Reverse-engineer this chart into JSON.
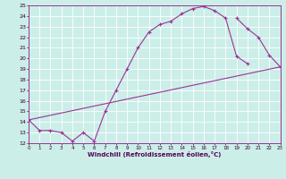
{
  "xlabel": "Windchill (Refroidissement éolien,°C)",
  "xlim": [
    0,
    23
  ],
  "ylim": [
    12,
    25
  ],
  "xticks": [
    0,
    1,
    2,
    3,
    4,
    5,
    6,
    7,
    8,
    9,
    10,
    11,
    12,
    13,
    14,
    15,
    16,
    17,
    18,
    19,
    20,
    21,
    22,
    23
  ],
  "yticks": [
    12,
    13,
    14,
    15,
    16,
    17,
    18,
    19,
    20,
    21,
    22,
    23,
    24,
    25
  ],
  "bg_color": "#cceee8",
  "line_color": "#993399",
  "grid_color": "#aaddcc",
  "curve1_x": [
    0,
    1,
    2,
    3,
    4,
    5,
    6,
    7,
    8,
    9,
    10,
    11,
    12,
    13,
    14,
    15,
    16,
    17,
    18,
    19,
    20
  ],
  "curve1_y": [
    14.2,
    13.2,
    13.2,
    13.0,
    12.2,
    13.0,
    12.2,
    15.0,
    17.0,
    19.0,
    21.0,
    22.5,
    23.2,
    23.5,
    24.2,
    24.7,
    24.9,
    24.5,
    23.8,
    20.2,
    19.5
  ],
  "curve2_x": [
    0,
    23
  ],
  "curve2_y": [
    14.2,
    19.2
  ],
  "curve3_x": [
    19,
    20,
    21,
    22,
    23
  ],
  "curve3_y": [
    23.8,
    22.8,
    22.0,
    20.3,
    19.2
  ]
}
